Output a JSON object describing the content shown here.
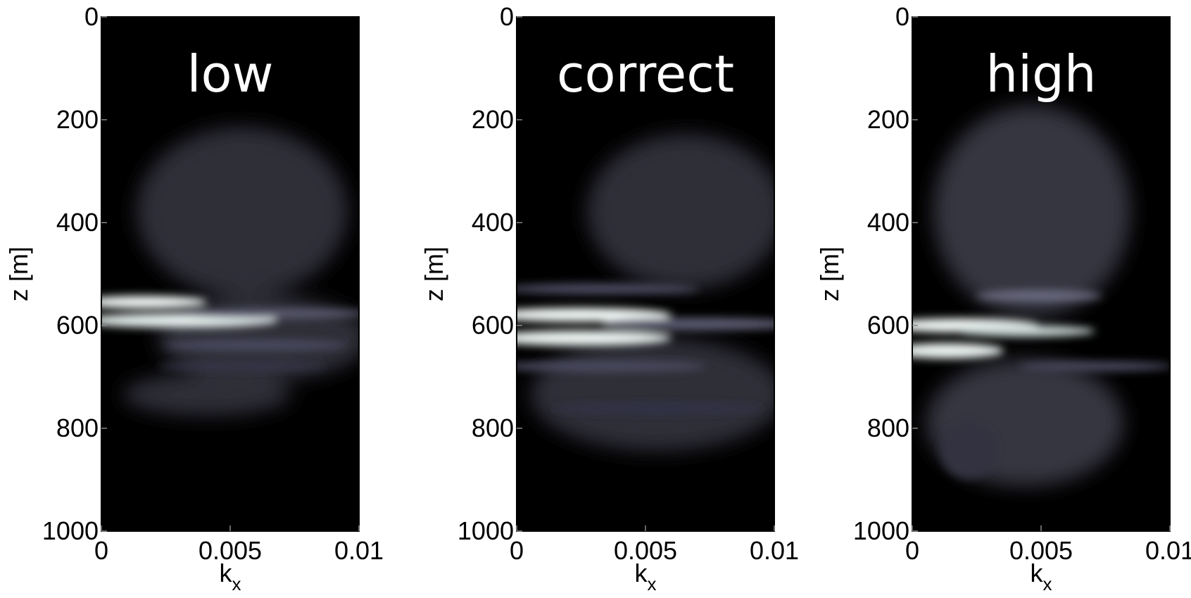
{
  "chart_data": [
    {
      "type": "heatmap",
      "title": "low",
      "ylabel": "z [m]",
      "xlabel": "k",
      "xlabel_sub": "x",
      "xlim": [
        0,
        0.01
      ],
      "xticks": [
        0,
        0.005,
        0.01
      ],
      "ylim": [
        0,
        1000
      ],
      "yticks": [
        0,
        200,
        400,
        600,
        800,
        1000
      ],
      "y_inverted": true,
      "colormap": "bone"
    },
    {
      "type": "heatmap",
      "title": "correct",
      "ylabel": "z [m]",
      "xlabel": "k",
      "xlabel_sub": "x",
      "xlim": [
        0,
        0.01
      ],
      "xticks": [
        0,
        0.005,
        0.01
      ],
      "ylim": [
        0,
        1000
      ],
      "yticks": [
        0,
        200,
        400,
        600,
        800,
        1000
      ],
      "y_inverted": true,
      "colormap": "bone"
    },
    {
      "type": "heatmap",
      "title": "high",
      "ylabel": "z [m]",
      "xlabel": "k",
      "xlabel_sub": "x",
      "xlim": [
        0,
        0.01
      ],
      "xticks": [
        0,
        0.005,
        0.01
      ],
      "ylim": [
        0,
        1000
      ],
      "yticks": [
        0,
        200,
        400,
        600,
        800,
        1000
      ],
      "y_inverted": true,
      "colormap": "bone"
    }
  ]
}
